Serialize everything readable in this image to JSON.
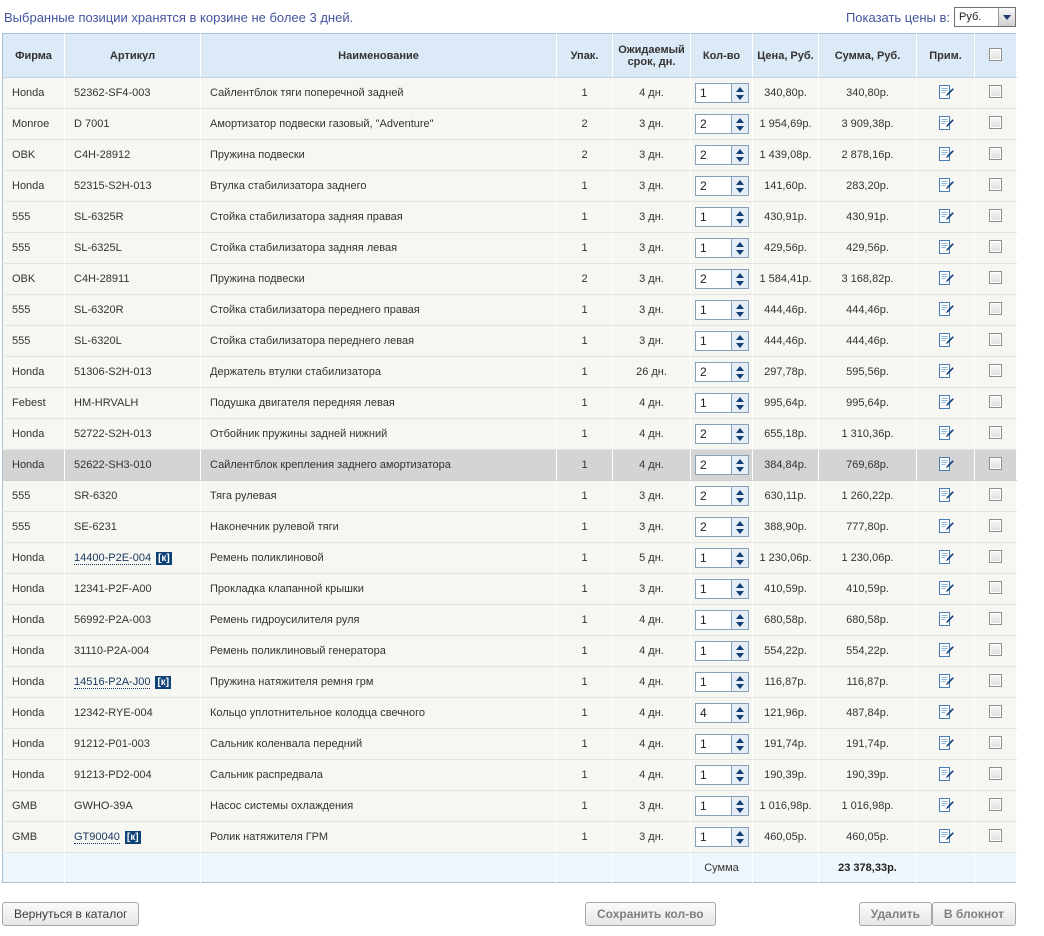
{
  "topbar": {
    "notice": "Выбранные позиции хранятся в корзине не более 3 дней.",
    "currency_label": "Показать цены в:",
    "currency_value": "Руб."
  },
  "table": {
    "headers": {
      "brand": "Фирма",
      "article": "Артикул",
      "name": "Наименование",
      "pack": "Упак.",
      "term": "Ожидаемый срок, дн.",
      "qty": "Кол-во",
      "price": "Цена, Руб.",
      "sum": "Сумма, Руб.",
      "note": "Прим."
    },
    "badge": "[к]",
    "rows": [
      {
        "brand": "Honda",
        "article": "52362-SF4-003",
        "link": false,
        "name": "Сайлентблок тяги поперечной задней",
        "pack": "1",
        "term": "4 дн.",
        "qty": "1",
        "price": "340,80р.",
        "sum": "340,80р.",
        "highlighted": false
      },
      {
        "brand": "Monroe",
        "article": "D 7001",
        "link": false,
        "name": "Амортизатор подвески газовый, \"Adventure\"",
        "pack": "2",
        "term": "3 дн.",
        "qty": "2",
        "price": "1 954,69р.",
        "sum": "3 909,38р.",
        "highlighted": false
      },
      {
        "brand": "OBK",
        "article": "C4H-28912",
        "link": false,
        "name": "Пружина подвески",
        "pack": "2",
        "term": "3 дн.",
        "qty": "2",
        "price": "1 439,08р.",
        "sum": "2 878,16р.",
        "highlighted": false
      },
      {
        "brand": "Honda",
        "article": "52315-S2H-013",
        "link": false,
        "name": "Втулка стабилизатора заднего",
        "pack": "1",
        "term": "3 дн.",
        "qty": "2",
        "price": "141,60р.",
        "sum": "283,20р.",
        "highlighted": false
      },
      {
        "brand": "555",
        "article": "SL-6325R",
        "link": false,
        "name": "Стойка стабилизатора задняя правая",
        "pack": "1",
        "term": "3 дн.",
        "qty": "1",
        "price": "430,91р.",
        "sum": "430,91р.",
        "highlighted": false
      },
      {
        "brand": "555",
        "article": "SL-6325L",
        "link": false,
        "name": "Стойка стабилизатора задняя левая",
        "pack": "1",
        "term": "3 дн.",
        "qty": "1",
        "price": "429,56р.",
        "sum": "429,56р.",
        "highlighted": false
      },
      {
        "brand": "OBK",
        "article": "C4H-28911",
        "link": false,
        "name": "Пружина подвески",
        "pack": "2",
        "term": "3 дн.",
        "qty": "2",
        "price": "1 584,41р.",
        "sum": "3 168,82р.",
        "highlighted": false
      },
      {
        "brand": "555",
        "article": "SL-6320R",
        "link": false,
        "name": "Стойка стабилизатора переднего правая",
        "pack": "1",
        "term": "3 дн.",
        "qty": "1",
        "price": "444,46р.",
        "sum": "444,46р.",
        "highlighted": false
      },
      {
        "brand": "555",
        "article": "SL-6320L",
        "link": false,
        "name": "Стойка стабилизатора переднего левая",
        "pack": "1",
        "term": "3 дн.",
        "qty": "1",
        "price": "444,46р.",
        "sum": "444,46р.",
        "highlighted": false
      },
      {
        "brand": "Honda",
        "article": "51306-S2H-013",
        "link": false,
        "name": "Держатель втулки стабилизатора",
        "pack": "1",
        "term": "26 дн.",
        "qty": "2",
        "price": "297,78р.",
        "sum": "595,56р.",
        "highlighted": false
      },
      {
        "brand": "Febest",
        "article": "HM-HRVALH",
        "link": false,
        "name": "Подушка двигателя передняя левая",
        "pack": "1",
        "term": "4 дн.",
        "qty": "1",
        "price": "995,64р.",
        "sum": "995,64р.",
        "highlighted": false
      },
      {
        "brand": "Honda",
        "article": "52722-S2H-013",
        "link": false,
        "name": "Отбойник пружины задней нижний",
        "pack": "1",
        "term": "4 дн.",
        "qty": "2",
        "price": "655,18р.",
        "sum": "1 310,36р.",
        "highlighted": false
      },
      {
        "brand": "Honda",
        "article": "52622-SH3-010",
        "link": false,
        "name": "Сайлентблок крепления заднего амортизатора",
        "pack": "1",
        "term": "4 дн.",
        "qty": "2",
        "price": "384,84р.",
        "sum": "769,68р.",
        "highlighted": true
      },
      {
        "brand": "555",
        "article": "SR-6320",
        "link": false,
        "name": "Тяга рулевая",
        "pack": "1",
        "term": "3 дн.",
        "qty": "2",
        "price": "630,11р.",
        "sum": "1 260,22р.",
        "highlighted": false
      },
      {
        "brand": "555",
        "article": "SE-6231",
        "link": false,
        "name": "Наконечник рулевой тяги",
        "pack": "1",
        "term": "3 дн.",
        "qty": "2",
        "price": "388,90р.",
        "sum": "777,80р.",
        "highlighted": false
      },
      {
        "brand": "Honda",
        "article": "14400-P2E-004",
        "link": true,
        "name": "Ремень поликлиновой",
        "pack": "1",
        "term": "5 дн.",
        "qty": "1",
        "price": "1 230,06р.",
        "sum": "1 230,06р.",
        "highlighted": false
      },
      {
        "brand": "Honda",
        "article": "12341-P2F-A00",
        "link": false,
        "name": "Прокладка клапанной крышки",
        "pack": "1",
        "term": "3 дн.",
        "qty": "1",
        "price": "410,59р.",
        "sum": "410,59р.",
        "highlighted": false
      },
      {
        "brand": "Honda",
        "article": "56992-P2A-003",
        "link": false,
        "name": "Ремень гидроусилителя руля",
        "pack": "1",
        "term": "4 дн.",
        "qty": "1",
        "price": "680,58р.",
        "sum": "680,58р.",
        "highlighted": false
      },
      {
        "brand": "Honda",
        "article": "31110-P2A-004",
        "link": false,
        "name": "Ремень поликлиновый генератора",
        "pack": "1",
        "term": "4 дн.",
        "qty": "1",
        "price": "554,22р.",
        "sum": "554,22р.",
        "highlighted": false
      },
      {
        "brand": "Honda",
        "article": "14516-P2A-J00",
        "link": true,
        "name": "Пружина натяжителя ремня грм",
        "pack": "1",
        "term": "4 дн.",
        "qty": "1",
        "price": "116,87р.",
        "sum": "116,87р.",
        "highlighted": false
      },
      {
        "brand": "Honda",
        "article": "12342-RYE-004",
        "link": false,
        "name": "Кольцо уплотнительное колодца свечного",
        "pack": "1",
        "term": "4 дн.",
        "qty": "4",
        "price": "121,96р.",
        "sum": "487,84р.",
        "highlighted": false
      },
      {
        "brand": "Honda",
        "article": "91212-P01-003",
        "link": false,
        "name": "Сальник коленвала передний",
        "pack": "1",
        "term": "4 дн.",
        "qty": "1",
        "price": "191,74р.",
        "sum": "191,74р.",
        "highlighted": false
      },
      {
        "brand": "Honda",
        "article": "91213-PD2-004",
        "link": false,
        "name": "Сальник распредвала",
        "pack": "1",
        "term": "4 дн.",
        "qty": "1",
        "price": "190,39р.",
        "sum": "190,39р.",
        "highlighted": false
      },
      {
        "brand": "GMB",
        "article": "GWHO-39A",
        "link": false,
        "name": "Насос системы охлаждения",
        "pack": "1",
        "term": "3 дн.",
        "qty": "1",
        "price": "1 016,98р.",
        "sum": "1 016,98р.",
        "highlighted": false
      },
      {
        "brand": "GMB",
        "article": "GT90040",
        "link": true,
        "name": "Ролик натяжителя ГРМ",
        "pack": "1",
        "term": "3 дн.",
        "qty": "1",
        "price": "460,05р.",
        "sum": "460,05р.",
        "highlighted": false
      }
    ],
    "footer": {
      "label": "Сумма",
      "total": "23 378,33р."
    }
  },
  "buttons": {
    "back": "Вернуться в каталог",
    "save": "Сохранить кол-во",
    "delete": "Удалить",
    "notepad": "В блокнот"
  }
}
